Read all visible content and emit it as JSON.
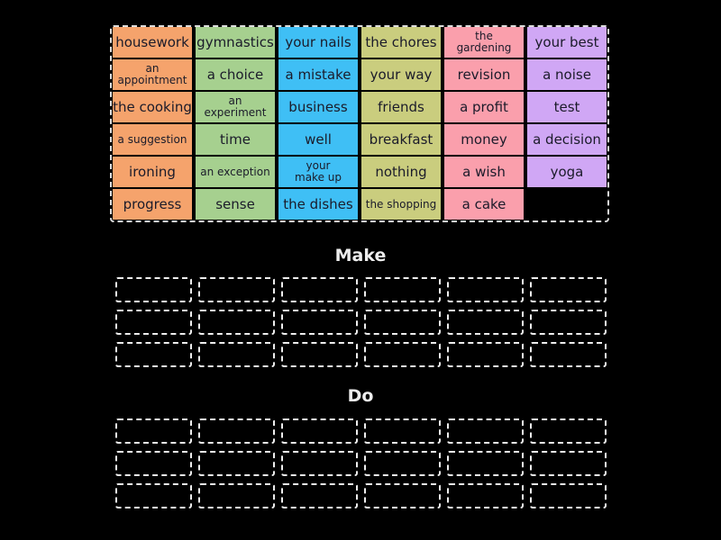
{
  "colors": [
    "#f5a36c",
    "#a6d08f",
    "#3fbff5",
    "#cacd7e",
    "#fa9fac",
    "#d0a7f5"
  ],
  "columns": [
    [
      "housework",
      "an appointment",
      "the cooking",
      "a suggestion",
      "ironing",
      "progress"
    ],
    [
      "gymnastics",
      "a choice",
      "an experiment",
      "time",
      "an exception",
      "sense"
    ],
    [
      "your nails",
      "a mistake",
      "business",
      "well",
      "your make up",
      "the dishes"
    ],
    [
      "the chores",
      "your way",
      "friends",
      "breakfast",
      "nothing",
      "the shopping"
    ],
    [
      "the gardening",
      "revision",
      "a profit",
      "money",
      "a wish",
      "a cake"
    ],
    [
      "your best",
      "a noise",
      "test",
      "a decision",
      "yoga"
    ]
  ],
  "groups": [
    {
      "title": "Make"
    },
    {
      "title": "Do"
    }
  ]
}
